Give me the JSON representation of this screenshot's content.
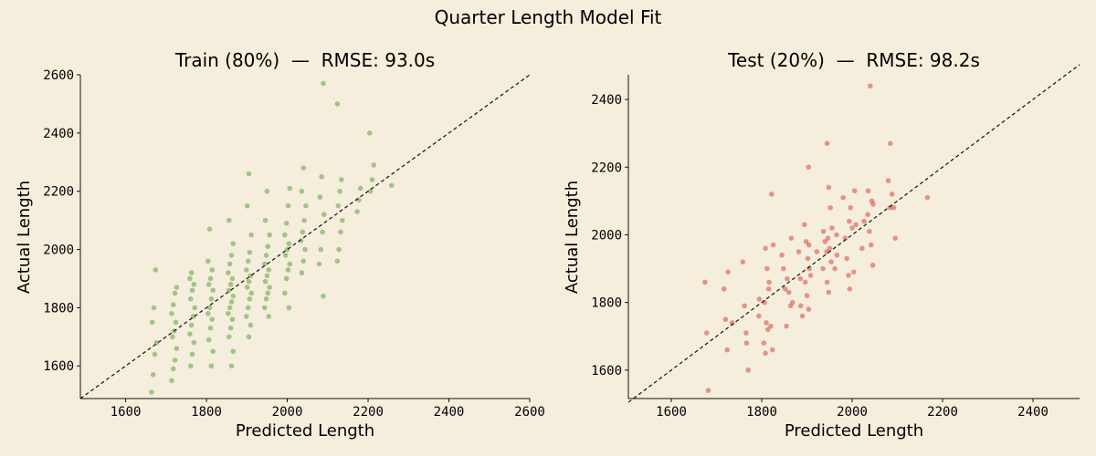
{
  "colors": {
    "background": "#f5eedd",
    "train": "#6aa84f",
    "test": "#d9574a",
    "ink": "#111111"
  },
  "chart_data": {
    "suptitle": "Quarter Length Model Fit",
    "panels": [
      {
        "type": "scatter",
        "name": "train",
        "title": "Train (80%)  —  RMSE: 93.0s",
        "xlabel": "Predicted Length",
        "ylabel": "Actual Length",
        "xlim": [
          1488,
          2600
        ],
        "ylim": [
          1488,
          2600
        ],
        "xticks": [
          1600,
          1800,
          2000,
          2200,
          2400,
          2600
        ],
        "yticks": [
          1600,
          1800,
          2000,
          2200,
          2400,
          2600
        ],
        "reference_line": "y = x (dashed)",
        "color_key": "train",
        "columns": [
          {
            "x": 1670,
            "y": [
              1510,
              1570,
              1640,
              1680,
              1750,
              1800,
              1930
            ]
          },
          {
            "x": 1720,
            "y": [
              1550,
              1590,
              1620,
              1660,
              1700,
              1720,
              1750,
              1780,
              1810,
              1850,
              1870
            ]
          },
          {
            "x": 1765,
            "y": [
              1600,
              1640,
              1680,
              1710,
              1740,
              1770,
              1800,
              1830,
              1860,
              1880,
              1900,
              1920
            ]
          },
          {
            "x": 1810,
            "y": [
              1600,
              1650,
              1690,
              1730,
              1760,
              1780,
              1800,
              1830,
              1860,
              1880,
              1900,
              1930,
              1960,
              2070
            ]
          },
          {
            "x": 1860,
            "y": [
              1600,
              1650,
              1700,
              1730,
              1760,
              1780,
              1800,
              1820,
              1840,
              1860,
              1880,
              1900,
              1920,
              1950,
              1980,
              2020,
              2100
            ]
          },
          {
            "x": 1905,
            "y": [
              1700,
              1740,
              1770,
              1800,
              1830,
              1850,
              1870,
              1890,
              1910,
              1930,
              1960,
              1990,
              2050,
              2150,
              2260
            ]
          },
          {
            "x": 1950,
            "y": [
              1770,
              1800,
              1830,
              1850,
              1870,
              1890,
              1910,
              1930,
              1950,
              1980,
              2010,
              2050,
              2100,
              2200
            ]
          },
          {
            "x": 2000,
            "y": [
              1800,
              1850,
              1900,
              1930,
              1950,
              1980,
              2000,
              2020,
              2050,
              2090,
              2150,
              2210
            ]
          },
          {
            "x": 2040,
            "y": [
              1920,
              1960,
              2000,
              2030,
              2060,
              2100,
              2150,
              2200,
              2280
            ]
          },
          {
            "x": 2085,
            "y": [
              1840,
              1950,
              2000,
              2060,
              2120,
              2180,
              2250,
              2570
            ]
          },
          {
            "x": 2130,
            "y": [
              1960,
              2000,
              2060,
              2100,
              2150,
              2200,
              2240,
              2500
            ]
          },
          {
            "x": 2175,
            "y": [
              2130,
              2170,
              2210
            ]
          },
          {
            "x": 2210,
            "y": [
              2200,
              2240,
              2290,
              2400
            ]
          },
          {
            "x": 2260,
            "y": [
              2220
            ]
          }
        ]
      },
      {
        "type": "scatter",
        "name": "test",
        "title": "Test (20%)  —  RMSE: 98.2s",
        "xlabel": "Predicted Length",
        "ylabel": "Actual Length",
        "xlim": [
          1505,
          2503
        ],
        "ylim": [
          1516,
          2473
        ],
        "xticks": [
          1600,
          1800,
          2000,
          2200,
          2400
        ],
        "yticks": [
          1600,
          1800,
          2000,
          2200,
          2400
        ],
        "reference_line": "y = x (dashed)",
        "color_key": "test",
        "points": [
          [
            1680,
            1860
          ],
          [
            1680,
            1710
          ],
          [
            1680,
            1540
          ],
          [
            1720,
            1890
          ],
          [
            1720,
            1840
          ],
          [
            1720,
            1750
          ],
          [
            1720,
            1660
          ],
          [
            1740,
            1740
          ],
          [
            1760,
            1920
          ],
          [
            1760,
            1790
          ],
          [
            1760,
            1710
          ],
          [
            1770,
            1680
          ],
          [
            1770,
            1600
          ],
          [
            1790,
            1760
          ],
          [
            1800,
            1810
          ],
          [
            1810,
            1960
          ],
          [
            1810,
            1900
          ],
          [
            1810,
            1840
          ],
          [
            1810,
            1800
          ],
          [
            1810,
            1740
          ],
          [
            1810,
            1720
          ],
          [
            1810,
            1680
          ],
          [
            1810,
            1650
          ],
          [
            1820,
            2120
          ],
          [
            1820,
            1970
          ],
          [
            1820,
            1860
          ],
          [
            1820,
            1730
          ],
          [
            1820,
            1660
          ],
          [
            1850,
            1940
          ],
          [
            1850,
            1900
          ],
          [
            1850,
            1840
          ],
          [
            1860,
            1990
          ],
          [
            1860,
            1870
          ],
          [
            1860,
            1830
          ],
          [
            1860,
            1790
          ],
          [
            1860,
            1730
          ],
          [
            1870,
            1800
          ],
          [
            1880,
            1950
          ],
          [
            1880,
            1870
          ],
          [
            1890,
            1790
          ],
          [
            1890,
            1760
          ],
          [
            1900,
            2200
          ],
          [
            1900,
            2030
          ],
          [
            1900,
            1980
          ],
          [
            1900,
            1930
          ],
          [
            1900,
            1900
          ],
          [
            1900,
            1860
          ],
          [
            1900,
            1820
          ],
          [
            1900,
            1780
          ],
          [
            1910,
            1970
          ],
          [
            1910,
            1880
          ],
          [
            1920,
            1950
          ],
          [
            1930,
            1900
          ],
          [
            1940,
            2010
          ],
          [
            1940,
            1980
          ],
          [
            1940,
            1950
          ],
          [
            1950,
            2270
          ],
          [
            1950,
            2140
          ],
          [
            1950,
            2080
          ],
          [
            1950,
            2020
          ],
          [
            1950,
            1990
          ],
          [
            1950,
            1960
          ],
          [
            1950,
            1920
          ],
          [
            1950,
            1860
          ],
          [
            1950,
            1830
          ],
          [
            1960,
            1900
          ],
          [
            1960,
            2000
          ],
          [
            1970,
            1940
          ],
          [
            1980,
            2110
          ],
          [
            1990,
            2040
          ],
          [
            1990,
            1990
          ],
          [
            1990,
            1930
          ],
          [
            1990,
            1880
          ],
          [
            2000,
            2130
          ],
          [
            2000,
            2080
          ],
          [
            2000,
            2020
          ],
          [
            2000,
            1890
          ],
          [
            2000,
            1840
          ],
          [
            2010,
            2030
          ],
          [
            2020,
            1960
          ],
          [
            2030,
            2130
          ],
          [
            2030,
            2040
          ],
          [
            2040,
            2440
          ],
          [
            2040,
            2100
          ],
          [
            2040,
            2060
          ],
          [
            2040,
            2010
          ],
          [
            2040,
            1970
          ],
          [
            2040,
            1910
          ],
          [
            2050,
            2090
          ],
          [
            2080,
            2160
          ],
          [
            2080,
            2080
          ],
          [
            2090,
            2270
          ],
          [
            2090,
            2120
          ],
          [
            2090,
            2080
          ],
          [
            2090,
            1990
          ],
          [
            2170,
            2110
          ]
        ]
      }
    ]
  }
}
